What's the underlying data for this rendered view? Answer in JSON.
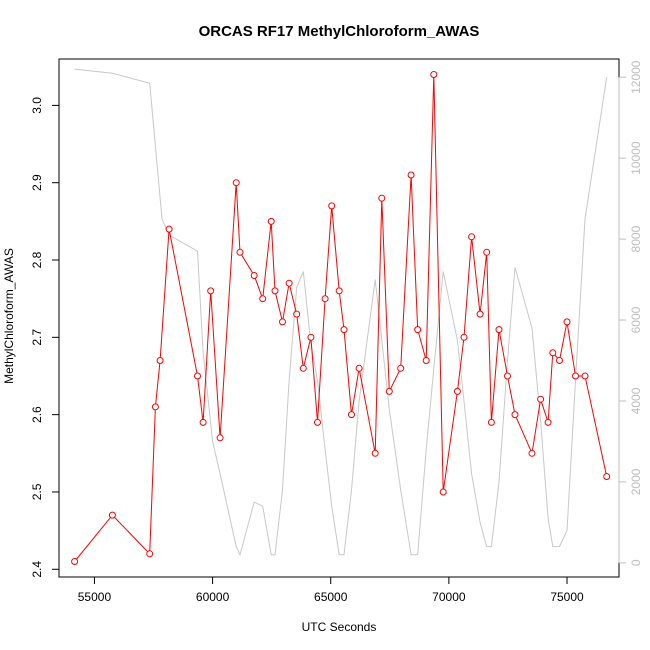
{
  "chart_data": {
    "type": "line",
    "title": "ORCAS RF17 MethylChloroform_AWAS",
    "xlabel": "UTC Seconds",
    "ylabel": "MethylChloroform_AWAS",
    "xlim": [
      53500,
      77200
    ],
    "ylim": [
      2.39,
      3.06
    ],
    "y2lim": [
      -350,
      12450
    ],
    "x_ticks": [
      55000,
      60000,
      65000,
      70000,
      75000
    ],
    "y_ticks": [
      2.4,
      2.5,
      2.6,
      2.7,
      2.8,
      2.9,
      3.0
    ],
    "y2_ticks": [
      0,
      2000,
      4000,
      6000,
      8000,
      10000,
      12000
    ],
    "grid": false,
    "series": [
      {
        "color": "#ff0000",
        "marker": "open-circle",
        "points": [
          [
            54160,
            2.41
          ],
          [
            55760,
            2.47
          ],
          [
            57340,
            2.42
          ],
          [
            57580,
            2.61
          ],
          [
            57780,
            2.67
          ],
          [
            58160,
            2.84
          ],
          [
            59360,
            2.65
          ],
          [
            59600,
            2.59
          ],
          [
            59920,
            2.76
          ],
          [
            60320,
            2.57
          ],
          [
            61000,
            2.9
          ],
          [
            61160,
            2.81
          ],
          [
            61760,
            2.78
          ],
          [
            62120,
            2.75
          ],
          [
            62480,
            2.85
          ],
          [
            62640,
            2.76
          ],
          [
            62960,
            2.72
          ],
          [
            63240,
            2.77
          ],
          [
            63560,
            2.73
          ],
          [
            63840,
            2.66
          ],
          [
            64160,
            2.7
          ],
          [
            64440,
            2.59
          ],
          [
            64760,
            2.75
          ],
          [
            65040,
            2.87
          ],
          [
            65360,
            2.76
          ],
          [
            65560,
            2.71
          ],
          [
            65880,
            2.6
          ],
          [
            66200,
            2.66
          ],
          [
            66880,
            2.55
          ],
          [
            67160,
            2.88
          ],
          [
            67480,
            2.63
          ],
          [
            67960,
            2.66
          ],
          [
            68400,
            2.91
          ],
          [
            68680,
            2.71
          ],
          [
            69040,
            2.67
          ],
          [
            69360,
            3.04
          ],
          [
            69760,
            2.5
          ],
          [
            70360,
            2.63
          ],
          [
            70640,
            2.7
          ],
          [
            70960,
            2.83
          ],
          [
            71320,
            2.73
          ],
          [
            71600,
            2.81
          ],
          [
            71800,
            2.59
          ],
          [
            72120,
            2.71
          ],
          [
            72480,
            2.65
          ],
          [
            72800,
            2.6
          ],
          [
            73520,
            2.55
          ],
          [
            73880,
            2.62
          ],
          [
            74200,
            2.59
          ],
          [
            74400,
            2.68
          ],
          [
            74680,
            2.67
          ],
          [
            75000,
            2.72
          ],
          [
            75360,
            2.65
          ],
          [
            75760,
            2.65
          ],
          [
            76680,
            2.52
          ]
        ]
      },
      {
        "color": "#c8c8c8",
        "marker": "none",
        "points": [
          [
            54160,
            12200
          ],
          [
            55760,
            12100
          ],
          [
            57340,
            11850
          ],
          [
            57860,
            8500
          ],
          [
            58160,
            8100
          ],
          [
            59360,
            7700
          ],
          [
            59600,
            5200
          ],
          [
            60000,
            3000
          ],
          [
            60320,
            2200
          ],
          [
            61000,
            400
          ],
          [
            61160,
            200
          ],
          [
            61760,
            1500
          ],
          [
            62120,
            1400
          ],
          [
            62480,
            200
          ],
          [
            62640,
            200
          ],
          [
            62960,
            1800
          ],
          [
            63240,
            4500
          ],
          [
            63560,
            6800
          ],
          [
            63840,
            7200
          ],
          [
            64160,
            5400
          ],
          [
            64440,
            4500
          ],
          [
            64760,
            2800
          ],
          [
            65040,
            1400
          ],
          [
            65360,
            200
          ],
          [
            65560,
            200
          ],
          [
            65880,
            1800
          ],
          [
            66200,
            4000
          ],
          [
            66880,
            7000
          ],
          [
            67160,
            5500
          ],
          [
            67480,
            3800
          ],
          [
            67960,
            1800
          ],
          [
            68400,
            200
          ],
          [
            68680,
            200
          ],
          [
            69040,
            2800
          ],
          [
            69360,
            4800
          ],
          [
            69760,
            7200
          ],
          [
            70360,
            5500
          ],
          [
            70640,
            4000
          ],
          [
            70960,
            2200
          ],
          [
            71320,
            1000
          ],
          [
            71600,
            400
          ],
          [
            71800,
            400
          ],
          [
            72120,
            2000
          ],
          [
            72480,
            5000
          ],
          [
            72800,
            7300
          ],
          [
            73520,
            5800
          ],
          [
            73880,
            3500
          ],
          [
            74200,
            1100
          ],
          [
            74400,
            400
          ],
          [
            74680,
            400
          ],
          [
            75000,
            800
          ],
          [
            75360,
            4500
          ],
          [
            75760,
            8500
          ],
          [
            76680,
            12000
          ]
        ]
      }
    ]
  }
}
